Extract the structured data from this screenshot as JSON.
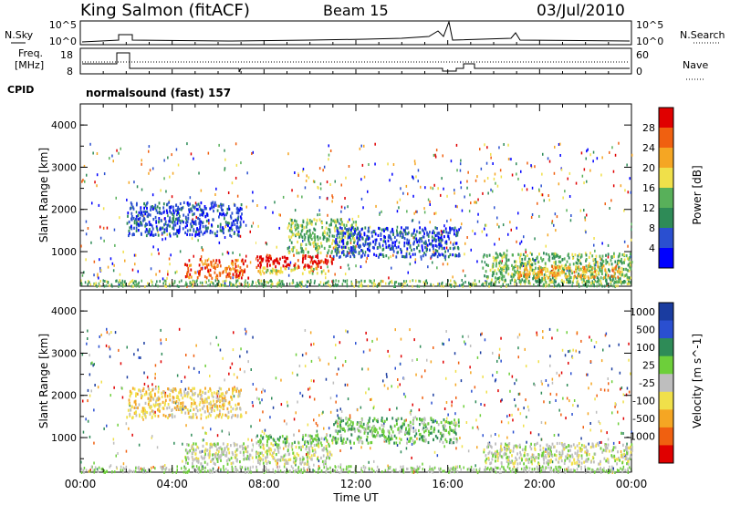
{
  "header": {
    "station": "King Salmon (fitACF)",
    "beam": "Beam 15",
    "date": "03/Jul/2010"
  },
  "strip_labels": {
    "nsky": "N.Sky",
    "nsearch": "N.Search",
    "freq": "Freq.",
    "freq_unit": "[MHz]",
    "nave": "Nave",
    "cpid": "CPID",
    "cpid_value": "normalsound (fast) 157",
    "nsky_ticks": [
      "10^5",
      "10^0"
    ],
    "nsearch_ticks": [
      "10^5",
      "10^0"
    ],
    "freq_ticks": [
      "18",
      "8"
    ],
    "nave_ticks": [
      "60",
      "0"
    ]
  },
  "colors": {
    "power": [
      "#0000ff",
      "#2a4fd0",
      "#2e8b57",
      "#58b05a",
      "#f0e04a",
      "#f5a623",
      "#f06010",
      "#e00000"
    ],
    "velocity": [
      "#e00000",
      "#f06010",
      "#f5a623",
      "#f0e04a",
      "#bebebe",
      "#6dcf3a",
      "#2e8b57",
      "#2a4fd0",
      "#1a3ca0"
    ]
  },
  "chart_data": [
    {
      "type": "heatmap",
      "name": "power-panel",
      "ylabel": "Slant Range [km]",
      "yticks": [
        "4000",
        "3000",
        "2000",
        "1000"
      ],
      "ylim": [
        180,
        4500
      ],
      "xlim": [
        0,
        24
      ],
      "colorbar": {
        "label": "Power [dB]",
        "ticks": [
          "28",
          "24",
          "20",
          "16",
          "12",
          "8",
          "4"
        ]
      },
      "regions": [
        {
          "t0": 4.5,
          "t1": 7.3,
          "r0": 400,
          "r1": 850,
          "level": 6
        },
        {
          "t0": 7.6,
          "t1": 11.0,
          "r0": 650,
          "r1": 950,
          "level": 7
        },
        {
          "t0": 7.6,
          "t1": 11.0,
          "r0": 500,
          "r1": 650,
          "level": 4
        },
        {
          "t0": 9.0,
          "t1": 12.0,
          "r0": 1000,
          "r1": 1800,
          "level": 3
        },
        {
          "t0": 11.0,
          "t1": 16.5,
          "r0": 900,
          "r1": 1600,
          "level": 1
        },
        {
          "t0": 2.0,
          "t1": 7.0,
          "r0": 1400,
          "r1": 2200,
          "level": 1
        },
        {
          "t0": 17.5,
          "t1": 24,
          "r0": 300,
          "r1": 1000,
          "level": 3
        },
        {
          "t0": 19.0,
          "t1": 23.5,
          "r0": 400,
          "r1": 700,
          "level": 5
        }
      ]
    },
    {
      "type": "heatmap",
      "name": "velocity-panel",
      "xlabel": "Time UT",
      "ylabel": "Slant Range [km]",
      "yticks": [
        "4000",
        "3000",
        "2000",
        "1000"
      ],
      "xticks": [
        "00:00",
        "04:00",
        "08:00",
        "12:00",
        "16:00",
        "20:00",
        "00:00"
      ],
      "ylim": [
        180,
        4500
      ],
      "xlim": [
        0,
        24
      ],
      "colorbar": {
        "label": "Velocity [m s^-1]",
        "ticks": [
          "1000",
          "500",
          "100",
          "25",
          "-25",
          "-100",
          "-500",
          "-1000"
        ]
      },
      "regions": [
        {
          "t0": 4.5,
          "t1": 11.0,
          "r0": 400,
          "r1": 900,
          "level": 4
        },
        {
          "t0": 7.6,
          "t1": 11.0,
          "r0": 900,
          "r1": 1100,
          "level": 5
        },
        {
          "t0": 11.0,
          "t1": 16.5,
          "r0": 900,
          "r1": 1500,
          "level": 5
        },
        {
          "t0": 2.0,
          "t1": 7.0,
          "r0": 1500,
          "r1": 2200,
          "level": 3
        },
        {
          "t0": 17.5,
          "t1": 24,
          "r0": 400,
          "r1": 900,
          "level": 4
        }
      ]
    }
  ]
}
